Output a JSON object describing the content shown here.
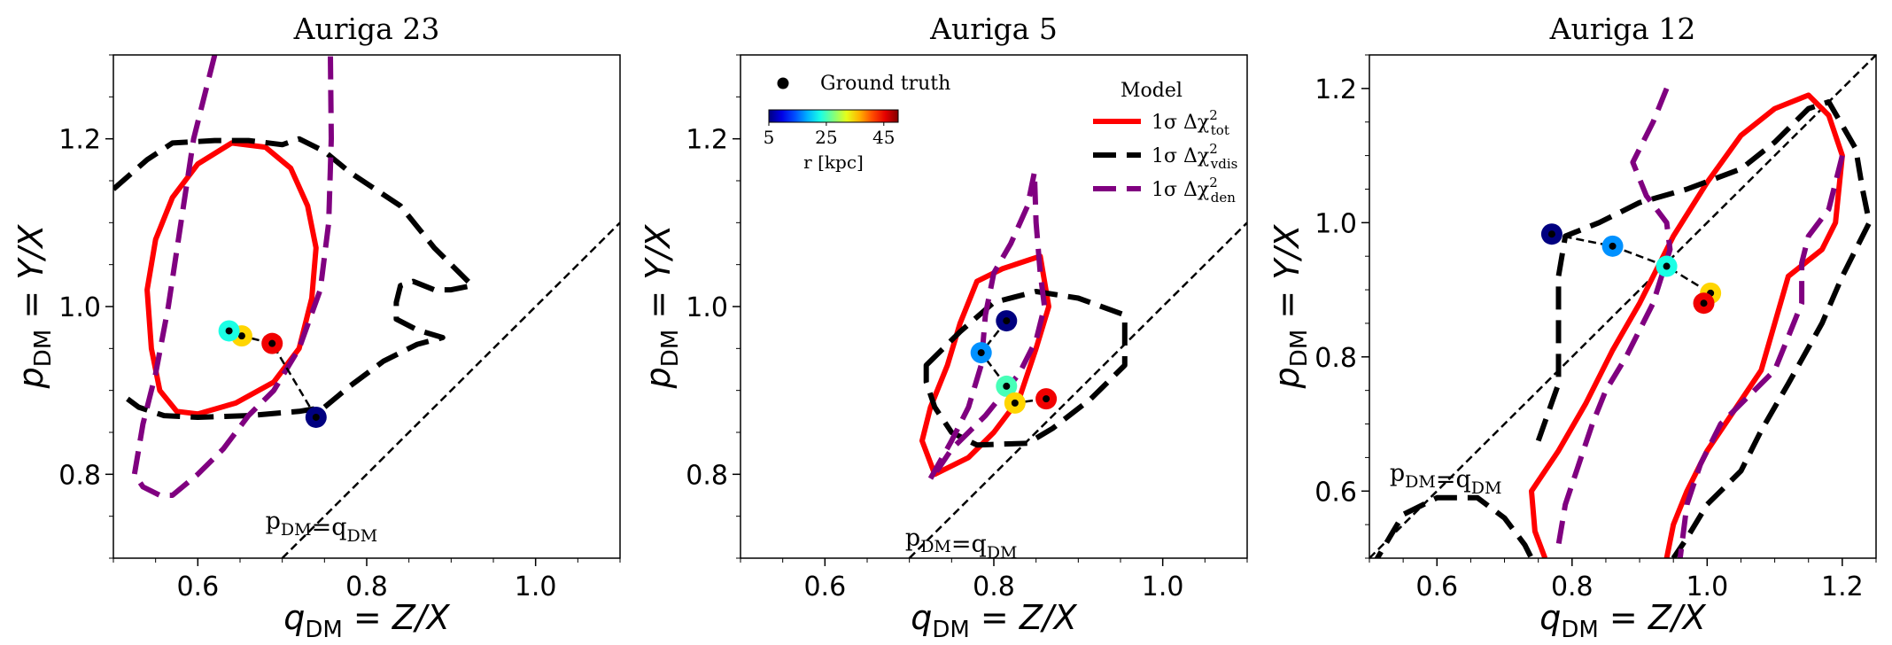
{
  "chart_data": [
    {
      "type": "line",
      "title": "Auriga 23",
      "xlabel": "q_DM = Z/X",
      "ylabel": "p_DM = Y/X",
      "xlim": [
        0.5,
        1.1
      ],
      "ylim": [
        0.7,
        1.3
      ],
      "xticks": [
        "0.6",
        "0.8",
        "1.0"
      ],
      "yticks": [
        "0.8",
        "1.0",
        "1.2"
      ],
      "xtick_values": [
        0.6,
        0.8,
        1.0
      ],
      "ytick_values": [
        0.8,
        1.0,
        1.2
      ],
      "diagonal_label": "p_DM=q_DM",
      "diagonal_label_pos": [
        0.68,
        0.735
      ],
      "contours": [
        {
          "series": "tot",
          "closed": true,
          "points": [
            [
              0.57,
              1.13
            ],
            [
              0.6,
              1.17
            ],
            [
              0.64,
              1.195
            ],
            [
              0.68,
              1.19
            ],
            [
              0.71,
              1.165
            ],
            [
              0.73,
              1.12
            ],
            [
              0.74,
              1.07
            ],
            [
              0.735,
              1.01
            ],
            [
              0.72,
              0.95
            ],
            [
              0.69,
              0.91
            ],
            [
              0.645,
              0.885
            ],
            [
              0.6,
              0.872
            ],
            [
              0.575,
              0.875
            ],
            [
              0.555,
              0.9
            ],
            [
              0.545,
              0.95
            ],
            [
              0.54,
              1.02
            ],
            [
              0.55,
              1.08
            ]
          ]
        },
        {
          "series": "vdis",
          "closed": false,
          "points": [
            [
              0.5,
              1.14
            ],
            [
              0.54,
              1.175
            ],
            [
              0.57,
              1.195
            ],
            [
              0.62,
              1.198
            ],
            [
              0.66,
              1.198
            ],
            [
              0.7,
              1.193
            ],
            [
              0.72,
              1.2
            ],
            [
              0.75,
              1.185
            ],
            [
              0.78,
              1.16
            ],
            [
              0.84,
              1.12
            ],
            [
              0.88,
              1.07
            ],
            [
              0.925,
              1.025
            ],
            [
              0.9,
              1.02
            ],
            [
              0.88,
              1.02
            ],
            [
              0.855,
              1.03
            ],
            [
              0.84,
              1.025
            ],
            [
              0.835,
              1.005
            ],
            [
              0.835,
              0.985
            ],
            [
              0.86,
              0.972
            ],
            [
              0.89,
              0.963
            ],
            [
              0.86,
              0.955
            ],
            [
              0.82,
              0.935
            ],
            [
              0.78,
              0.905
            ],
            [
              0.75,
              0.88
            ],
            [
              0.72,
              0.875
            ],
            [
              0.66,
              0.87
            ],
            [
              0.6,
              0.868
            ],
            [
              0.56,
              0.87
            ],
            [
              0.53,
              0.88
            ],
            [
              0.51,
              0.895
            ]
          ]
        },
        {
          "series": "den",
          "closed": false,
          "points": [
            [
              0.62,
              1.3
            ],
            [
              0.595,
              1.2
            ],
            [
              0.58,
              1.1
            ],
            [
              0.565,
              1.0
            ],
            [
              0.55,
              0.92
            ],
            [
              0.535,
              0.86
            ],
            [
              0.525,
              0.8
            ],
            [
              0.535,
              0.785
            ],
            [
              0.555,
              0.775
            ],
            [
              0.57,
              0.775
            ],
            [
              0.6,
              0.8
            ],
            [
              0.63,
              0.83
            ],
            [
              0.66,
              0.87
            ],
            [
              0.69,
              0.9
            ],
            [
              0.72,
              0.95
            ],
            [
              0.745,
              1.02
            ],
            [
              0.755,
              1.1
            ],
            [
              0.758,
              1.2
            ],
            [
              0.757,
              1.3
            ]
          ]
        }
      ],
      "path_points": [
        {
          "x": 0.74,
          "y": 0.868,
          "r_kpc": 5
        },
        {
          "x": 0.688,
          "y": 0.956,
          "r_kpc": 45
        },
        {
          "x": 0.652,
          "y": 0.965,
          "r_kpc": 35
        },
        {
          "x": 0.637,
          "y": 0.971,
          "r_kpc": 23
        }
      ],
      "show_legend": false
    },
    {
      "type": "line",
      "title": "Auriga 5",
      "xlabel": "q_DM = Z/X",
      "ylabel": "p_DM = Y/X",
      "xlim": [
        0.5,
        1.1
      ],
      "ylim": [
        0.7,
        1.3
      ],
      "xticks": [
        "0.6",
        "0.8",
        "1.0"
      ],
      "yticks": [
        "0.8",
        "1.0",
        "1.2"
      ],
      "xtick_values": [
        0.6,
        0.8,
        1.0
      ],
      "ytick_values": [
        0.8,
        1.0,
        1.2
      ],
      "diagonal_label": "p_DM=q_DM",
      "diagonal_label_pos": [
        0.695,
        0.715
      ],
      "contours": [
        {
          "series": "tot",
          "closed": true,
          "points": [
            [
              0.73,
              0.8
            ],
            [
              0.77,
              0.82
            ],
            [
              0.8,
              0.85
            ],
            [
              0.83,
              0.89
            ],
            [
              0.85,
              0.95
            ],
            [
              0.865,
              1.0
            ],
            [
              0.855,
              1.06
            ],
            [
              0.84,
              1.055
            ],
            [
              0.81,
              1.045
            ],
            [
              0.78,
              1.03
            ],
            [
              0.76,
              0.98
            ],
            [
              0.745,
              0.93
            ],
            [
              0.725,
              0.88
            ],
            [
              0.715,
              0.84
            ]
          ]
        },
        {
          "series": "vdis",
          "closed": true,
          "points": [
            [
              0.72,
              0.93
            ],
            [
              0.76,
              0.97
            ],
            [
              0.8,
              1.005
            ],
            [
              0.85,
              1.018
            ],
            [
              0.9,
              1.01
            ],
            [
              0.955,
              0.99
            ],
            [
              0.955,
              0.93
            ],
            [
              0.915,
              0.89
            ],
            [
              0.87,
              0.855
            ],
            [
              0.84,
              0.837
            ],
            [
              0.78,
              0.835
            ],
            [
              0.75,
              0.85
            ],
            [
              0.73,
              0.88
            ],
            [
              0.72,
              0.91
            ]
          ]
        },
        {
          "series": "den",
          "closed": true,
          "points": [
            [
              0.725,
              0.795
            ],
            [
              0.75,
              0.84
            ],
            [
              0.77,
              0.88
            ],
            [
              0.785,
              0.93
            ],
            [
              0.79,
              0.99
            ],
            [
              0.8,
              1.04
            ],
            [
              0.82,
              1.075
            ],
            [
              0.84,
              1.12
            ],
            [
              0.848,
              1.16
            ],
            [
              0.85,
              1.1
            ],
            [
              0.855,
              1.04
            ],
            [
              0.86,
              1.0
            ],
            [
              0.85,
              0.96
            ],
            [
              0.83,
              0.92
            ],
            [
              0.79,
              0.87
            ],
            [
              0.75,
              0.83
            ],
            [
              0.73,
              0.8
            ]
          ]
        }
      ],
      "path_points": [
        {
          "x": 0.815,
          "y": 0.983,
          "r_kpc": 5
        },
        {
          "x": 0.785,
          "y": 0.945,
          "r_kpc": 17
        },
        {
          "x": 0.815,
          "y": 0.905,
          "r_kpc": 25
        },
        {
          "x": 0.825,
          "y": 0.885,
          "r_kpc": 35
        },
        {
          "x": 0.862,
          "y": 0.89,
          "r_kpc": 45
        }
      ],
      "show_legend": true
    },
    {
      "type": "line",
      "title": "Auriga 12",
      "xlabel": "q_DM = Z/X",
      "ylabel": "p_DM = Y/X",
      "xlim": [
        0.5,
        1.25
      ],
      "ylim": [
        0.5,
        1.25
      ],
      "xticks": [
        "0.6",
        "0.8",
        "1.0",
        "1.2"
      ],
      "yticks": [
        "0.6",
        "0.8",
        "1.0",
        "1.2"
      ],
      "xtick_values": [
        0.6,
        0.8,
        1.0,
        1.2
      ],
      "ytick_values": [
        0.6,
        0.8,
        1.0,
        1.2
      ],
      "diagonal_label": "p_DM=q_DM",
      "diagonal_label_pos": [
        0.53,
        0.615
      ],
      "contours": [
        {
          "series": "tot",
          "closed": false,
          "points": [
            [
              0.76,
              0.5
            ],
            [
              0.745,
              0.54
            ],
            [
              0.74,
              0.6
            ],
            [
              0.78,
              0.66
            ],
            [
              0.82,
              0.73
            ],
            [
              0.86,
              0.81
            ],
            [
              0.9,
              0.88
            ],
            [
              0.95,
              0.98
            ],
            [
              1.0,
              1.06
            ],
            [
              1.05,
              1.13
            ],
            [
              1.1,
              1.17
            ],
            [
              1.15,
              1.19
            ],
            [
              1.18,
              1.16
            ],
            [
              1.2,
              1.1
            ],
            [
              1.19,
              1.0
            ],
            [
              1.17,
              0.96
            ],
            [
              1.12,
              0.92
            ],
            [
              1.1,
              0.85
            ],
            [
              1.08,
              0.78
            ],
            [
              1.04,
              0.72
            ],
            [
              1.0,
              0.66
            ],
            [
              0.97,
              0.6
            ],
            [
              0.95,
              0.55
            ],
            [
              0.94,
              0.5
            ]
          ]
        },
        {
          "series": "vdis",
          "closed": false,
          "points": [
            [
              0.5,
              0.48
            ],
            [
              0.55,
              0.565
            ],
            [
              0.6,
              0.59
            ],
            [
              0.66,
              0.59
            ],
            [
              0.7,
              0.56
            ],
            [
              0.73,
              0.52
            ],
            [
              0.74,
              0.5
            ]
          ]
        },
        {
          "series": "vdis",
          "closed": false,
          "points": [
            [
              0.75,
              0.675
            ],
            [
              0.78,
              0.76
            ],
            [
              0.78,
              0.85
            ],
            [
              0.78,
              0.92
            ],
            [
              0.79,
              0.98
            ],
            [
              0.84,
              1.0
            ],
            [
              0.9,
              1.03
            ],
            [
              0.97,
              1.05
            ],
            [
              1.05,
              1.08
            ],
            [
              1.1,
              1.12
            ],
            [
              1.15,
              1.17
            ],
            [
              1.18,
              1.18
            ],
            [
              1.22,
              1.11
            ],
            [
              1.23,
              1.05
            ],
            [
              1.24,
              1.0
            ],
            [
              1.22,
              0.96
            ],
            [
              1.2,
              0.92
            ],
            [
              1.17,
              0.85
            ],
            [
              1.12,
              0.76
            ],
            [
              1.08,
              0.69
            ],
            [
              1.05,
              0.63
            ],
            [
              1.0,
              0.58
            ],
            [
              0.97,
              0.53
            ],
            [
              0.95,
              0.5
            ]
          ]
        },
        {
          "series": "den",
          "closed": false,
          "points": [
            [
              0.94,
              1.2
            ],
            [
              0.92,
              1.15
            ],
            [
              0.89,
              1.09
            ],
            [
              0.91,
              1.04
            ],
            [
              0.94,
              1.0
            ],
            [
              0.945,
              0.96
            ],
            [
              0.92,
              0.88
            ],
            [
              0.88,
              0.8
            ],
            [
              0.85,
              0.75
            ],
            [
              0.83,
              0.7
            ],
            [
              0.81,
              0.64
            ],
            [
              0.79,
              0.58
            ],
            [
              0.78,
              0.52
            ]
          ]
        },
        {
          "series": "den",
          "closed": false,
          "points": [
            [
              1.2,
              1.1
            ],
            [
              1.18,
              1.02
            ],
            [
              1.15,
              0.98
            ],
            [
              1.14,
              0.94
            ],
            [
              1.14,
              0.88
            ],
            [
              1.12,
              0.83
            ],
            [
              1.1,
              0.78
            ],
            [
              1.06,
              0.74
            ],
            [
              1.02,
              0.7
            ],
            [
              0.99,
              0.64
            ],
            [
              0.97,
              0.58
            ],
            [
              0.96,
              0.5
            ]
          ]
        }
      ],
      "path_points": [
        {
          "x": 0.77,
          "y": 0.983,
          "r_kpc": 5
        },
        {
          "x": 0.86,
          "y": 0.965,
          "r_kpc": 17
        },
        {
          "x": 0.94,
          "y": 0.935,
          "r_kpc": 23
        },
        {
          "x": 1.005,
          "y": 0.895,
          "r_kpc": 35
        },
        {
          "x": 0.995,
          "y": 0.88,
          "r_kpc": 45
        }
      ],
      "show_legend": false
    }
  ],
  "legend": {
    "ground_truth_label": "Ground truth",
    "model_title": "Model",
    "series": [
      {
        "key": "tot",
        "label": "1σ Δχ²tot",
        "color": "#ff0000",
        "dashed": false
      },
      {
        "key": "vdis",
        "label": "1σ Δχ²vdis",
        "color": "#000000",
        "dashed": true
      },
      {
        "key": "den",
        "label": "1σ Δχ²den",
        "color": "#800080",
        "dashed": true
      }
    ],
    "colorbar": {
      "label": "r [kpc]",
      "ticks": [
        "5",
        "25",
        "45"
      ],
      "tick_values": [
        5,
        25,
        45
      ],
      "min": 5,
      "max": 50,
      "colormap": "jet"
    }
  }
}
